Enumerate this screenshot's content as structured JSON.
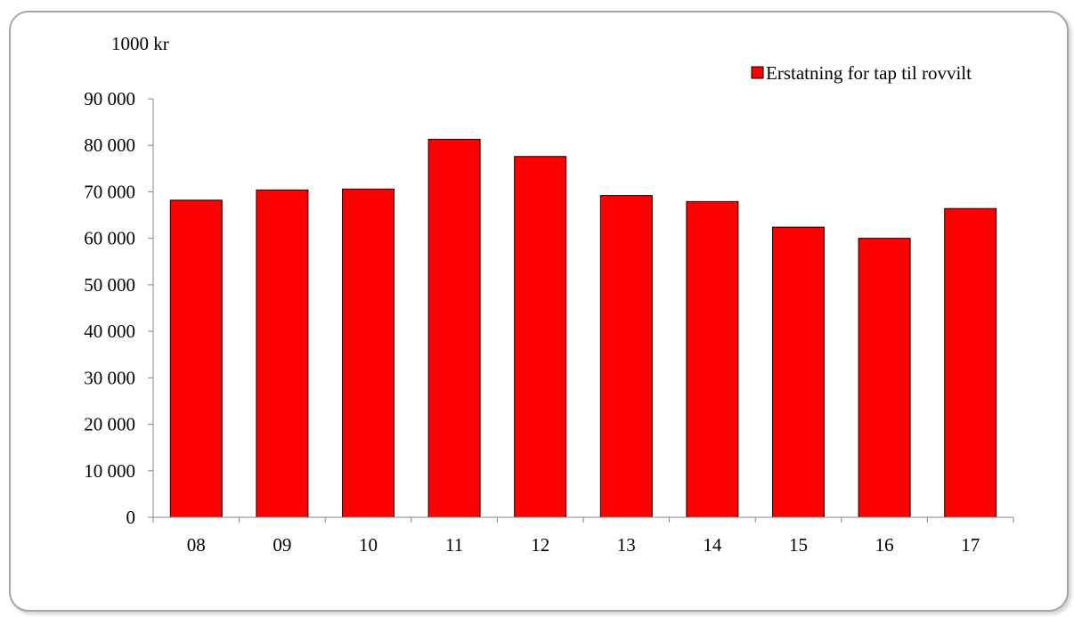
{
  "chart_data": {
    "type": "bar",
    "title": "",
    "ylabel": "1000 kr",
    "xlabel": "",
    "categories": [
      "08",
      "09",
      "10",
      "11",
      "12",
      "13",
      "14",
      "15",
      "16",
      "17"
    ],
    "series": [
      {
        "name": "Erstatning for tap til rovvilt",
        "color": "#ff0000",
        "values": [
          68200,
          70400,
          70600,
          81300,
          77600,
          69200,
          67900,
          62400,
          60000,
          66400
        ]
      }
    ],
    "ylim": [
      0,
      90000
    ],
    "yticks": [
      0,
      10000,
      20000,
      30000,
      40000,
      50000,
      60000,
      70000,
      80000,
      90000
    ],
    "ytick_labels": [
      "0",
      "10 000",
      "20 000",
      "30 000",
      "40 000",
      "50 000",
      "60 000",
      "70 000",
      "80 000",
      "90 000"
    ],
    "grid": false,
    "legend_position": "top-right"
  }
}
